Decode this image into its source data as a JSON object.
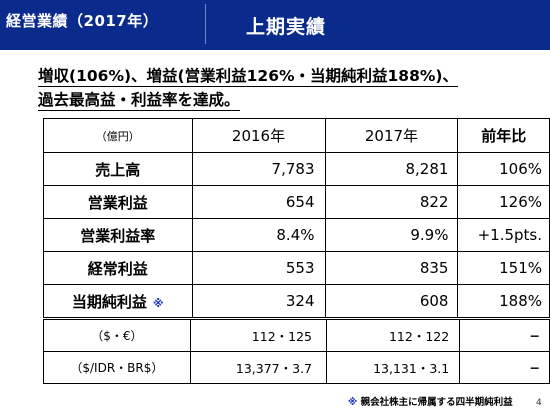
{
  "header": {
    "section_label": "経営業績（2017年）",
    "title": "上期実績"
  },
  "summary": {
    "line1": "増収(106%)、増益(営業利益126%・当期純利益188%)、",
    "line2": "過去最高益・利益率を達成。"
  },
  "main_table": {
    "unit_label": "（億円）",
    "columns": [
      "2016年",
      "2017年",
      "前年比"
    ],
    "rows": [
      {
        "label": "売上高",
        "mark": "",
        "v2016": "7,783",
        "v2017": "8,281",
        "ratio": "106%"
      },
      {
        "label": "営業利益",
        "mark": "",
        "v2016": "654",
        "v2017": "822",
        "ratio": "126%"
      },
      {
        "label": "営業利益率",
        "mark": "",
        "v2016": "8.4%",
        "v2017": "9.9%",
        "ratio": "+1.5pts."
      },
      {
        "label": "経常利益",
        "mark": "",
        "v2016": "553",
        "v2017": "835",
        "ratio": "151%"
      },
      {
        "label": "当期純利益",
        "mark": "※",
        "v2016": "324",
        "v2017": "608",
        "ratio": "188%"
      }
    ]
  },
  "fx_table": {
    "rows": [
      {
        "label": "（$・€）",
        "v2016": "112・125",
        "v2017": "112・122",
        "ratio": "−"
      },
      {
        "label": "（$/IDR・BR$）",
        "v2016": "13,377・3.7",
        "v2017": "13,131・3.1",
        "ratio": "−"
      }
    ]
  },
  "footnote": {
    "mark": "※",
    "text": "親会社株主に帰属する四半期純利益"
  },
  "page_number": "4",
  "colors": {
    "header_bg": "#0a2a8c",
    "header_text": "#ffffff",
    "accent_mark": "#1a32c8"
  }
}
